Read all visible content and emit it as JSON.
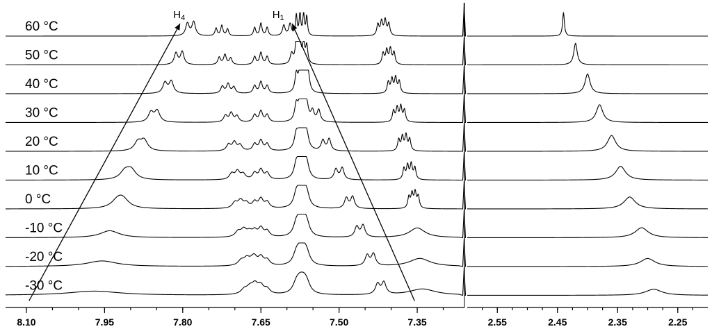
{
  "chart_data": {
    "type": "line",
    "x_axis": {
      "reversed": true,
      "left_panel": {
        "range": [
          8.14,
          7.27
        ],
        "tick_labels": [
          "8.10",
          "7.95",
          "7.80",
          "7.65",
          "7.50",
          "7.35"
        ],
        "ticks": [
          8.1,
          7.95,
          7.8,
          7.65,
          7.5,
          7.35
        ]
      },
      "right_panel": {
        "range": [
          2.6,
          2.2
        ],
        "tick_labels": [
          "2.55",
          "2.45",
          "2.35",
          "2.25"
        ],
        "ticks": [
          2.55,
          2.45,
          2.35,
          2.25
        ]
      }
    },
    "solvent_peak": 7.26,
    "series": [
      {
        "name": "60 °C",
        "h4": 7.785,
        "h1": 7.6,
        "q1": 7.415,
        "w_h4": 0.004,
        "methyl": 2.44,
        "h4_split": 0.012,
        "h1_split": 0.012,
        "q1_j": 0.007
      },
      {
        "name": "50 °C",
        "h4": 7.807,
        "h1": 7.585,
        "q1": 7.405,
        "w_h4": 0.004,
        "methyl": 2.42,
        "h4_split": 0.012,
        "h1_split": 0.012,
        "q1_j": 0.007
      },
      {
        "name": "40 °C",
        "h4": 7.828,
        "h1": 7.565,
        "q1": 7.395,
        "w_h4": 0.005,
        "methyl": 2.4,
        "h4_split": 0.012,
        "h1_split": 0.012,
        "q1_j": 0.007
      },
      {
        "name": "30 °C",
        "h4": 7.855,
        "h1": 7.545,
        "q1": 7.385,
        "w_h4": 0.006,
        "methyl": 2.38,
        "h4_split": 0.012,
        "h1_split": 0.012,
        "q1_j": 0.007
      },
      {
        "name": "20 °C",
        "h4": 7.88,
        "h1": 7.525,
        "q1": 7.375,
        "w_h4": 0.008,
        "methyl": 2.36,
        "h4_split": 0.012,
        "h1_split": 0.012,
        "q1_j": 0.007
      },
      {
        "name": "10 °C",
        "h4": 7.905,
        "h1": 7.5,
        "q1": 7.365,
        "w_h4": 0.011,
        "methyl": 2.345,
        "h4_split": 0.012,
        "h1_split": 0.012,
        "q1_j": 0.007
      },
      {
        "name": "0 °C",
        "h4": 7.92,
        "h1": 7.48,
        "q1": 7.357,
        "w_h4": 0.014,
        "methyl": 2.33,
        "h4_split": 0.01,
        "h1_split": 0.012,
        "q1_j": 0.006
      },
      {
        "name": "-10 °C",
        "h4": 7.94,
        "h1": 7.46,
        "q1": 7.35,
        "w_h4": 0.022,
        "methyl": 2.31,
        "h4_split": 0.0,
        "h1_split": 0.012,
        "q1_j": 0.0
      },
      {
        "name": "-20 °C",
        "h4": 7.955,
        "h1": 7.44,
        "q1": 7.345,
        "w_h4": 0.035,
        "methyl": 2.3,
        "h4_split": 0.0,
        "h1_split": 0.012,
        "q1_j": 0.0
      },
      {
        "name": "-30 °C",
        "h4": 7.97,
        "h1": 7.42,
        "q1": 7.34,
        "w_h4": 0.06,
        "methyl": 2.29,
        "h4_split": 0.0,
        "h1_split": 0.012,
        "q1_j": 0.0
      }
    ],
    "annotations": [
      {
        "text": "H",
        "sub": "4",
        "label_x": 7.81
      },
      {
        "text": "H",
        "sub": "1",
        "label_x": 7.62
      }
    ],
    "arrows": [
      {
        "from": {
          "x": 8.095,
          "series": "-30 °C"
        },
        "to": {
          "x": 7.805,
          "series": "60 °C"
        }
      },
      {
        "from": {
          "x": 7.355,
          "series": "-30 °C"
        },
        "to": {
          "x": 7.59,
          "series": "60 °C"
        }
      }
    ],
    "grid": false,
    "legend": "none"
  }
}
